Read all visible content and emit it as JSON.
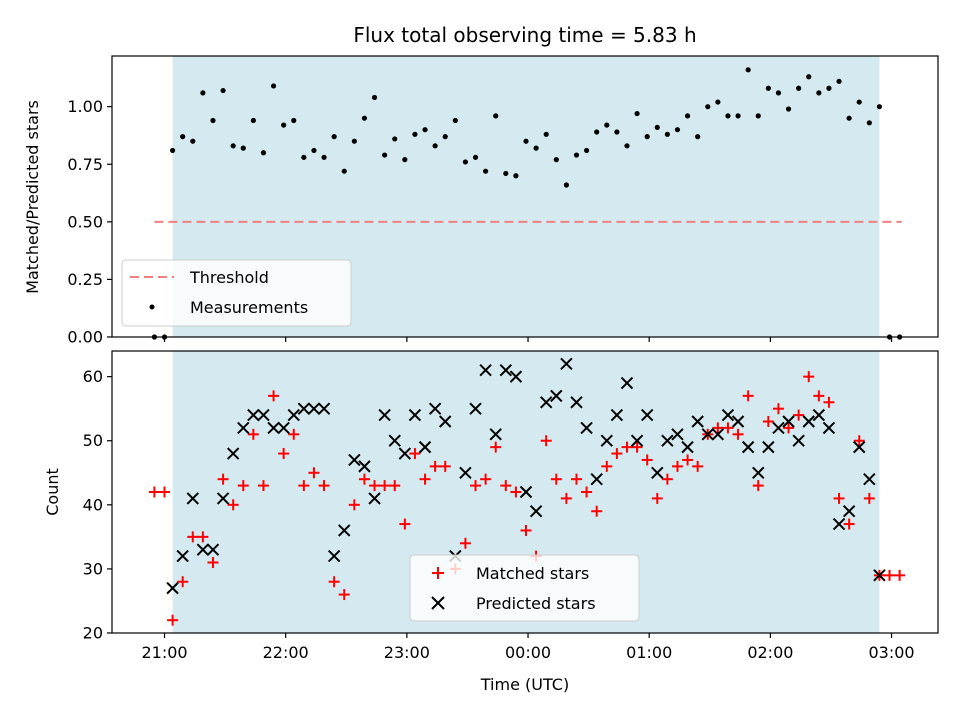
{
  "chart_data": [
    {
      "type": "scatter",
      "title": "Flux total observing time = 5.83 h",
      "ylabel": "Matched/Predicted stars",
      "ylim": [
        0.0,
        1.22
      ],
      "y_ticks": [
        "0.00",
        "0.25",
        "0.50",
        "0.75",
        "1.00"
      ],
      "x_range": [
        "20:34",
        "03:23"
      ],
      "shaded_span": [
        "21:04",
        "02:54"
      ],
      "colors": {
        "shade": "#d4eaf0",
        "threshold": "#f08080",
        "measurements": "#000000"
      },
      "threshold": {
        "name": "Threshold",
        "y": 0.5,
        "x_start": "20:55",
        "x_end": "03:05"
      },
      "series": [
        {
          "name": "Measurements",
          "x": [
            "20:55",
            "21:00",
            "21:04",
            "21:09",
            "21:14",
            "21:19",
            "21:24",
            "21:29",
            "21:34",
            "21:39",
            "21:44",
            "21:49",
            "21:54",
            "21:59",
            "22:04",
            "22:09",
            "22:14",
            "22:19",
            "22:24",
            "22:29",
            "22:34",
            "22:39",
            "22:44",
            "22:49",
            "22:54",
            "22:59",
            "23:04",
            "23:09",
            "23:14",
            "23:19",
            "23:24",
            "23:29",
            "23:34",
            "23:39",
            "23:44",
            "23:49",
            "23:54",
            "23:59",
            "00:04",
            "00:09",
            "00:14",
            "00:19",
            "00:24",
            "00:29",
            "00:34",
            "00:39",
            "00:44",
            "00:49",
            "00:54",
            "00:59",
            "01:04",
            "01:09",
            "01:14",
            "01:19",
            "01:24",
            "01:29",
            "01:34",
            "01:39",
            "01:44",
            "01:49",
            "01:54",
            "01:59",
            "02:04",
            "02:09",
            "02:14",
            "02:19",
            "02:24",
            "02:29",
            "02:34",
            "02:39",
            "02:44",
            "02:49",
            "02:54",
            "02:59",
            "03:04"
          ],
          "y": [
            0.0,
            0.0,
            0.81,
            0.87,
            0.85,
            1.06,
            0.94,
            1.07,
            0.83,
            0.82,
            0.94,
            0.8,
            1.09,
            0.92,
            0.94,
            0.78,
            0.81,
            0.78,
            0.87,
            0.72,
            0.85,
            0.95,
            1.04,
            0.79,
            0.86,
            0.77,
            0.88,
            0.9,
            0.83,
            0.87,
            0.94,
            0.76,
            0.78,
            0.72,
            0.96,
            0.71,
            0.7,
            0.85,
            0.82,
            0.88,
            0.77,
            0.66,
            0.79,
            0.81,
            0.89,
            0.92,
            0.89,
            0.83,
            0.97,
            0.87,
            0.91,
            0.88,
            0.9,
            0.96,
            0.87,
            1.0,
            1.02,
            0.96,
            0.96,
            1.16,
            0.96,
            1.08,
            1.06,
            0.99,
            1.08,
            1.13,
            1.06,
            1.08,
            1.11,
            0.95,
            1.02,
            0.93,
            1.0,
            0.0,
            0.0
          ]
        }
      ]
    },
    {
      "type": "scatter",
      "xlabel": "Time (UTC)",
      "ylabel": "Count",
      "ylim": [
        20,
        64
      ],
      "y_ticks": [
        "20",
        "30",
        "40",
        "50",
        "60"
      ],
      "x_ticks": [
        "21:00",
        "22:00",
        "23:00",
        "00:00",
        "01:00",
        "02:00",
        "03:00"
      ],
      "x_range": [
        "20:34",
        "03:23"
      ],
      "shaded_span": [
        "21:04",
        "02:54"
      ],
      "colors": {
        "shade": "#d4eaf0",
        "matched": "#ff0000",
        "predicted": "#000000"
      },
      "series": [
        {
          "name": "Matched stars",
          "x": [
            "20:55",
            "21:00",
            "21:04",
            "21:09",
            "21:14",
            "21:19",
            "21:24",
            "21:29",
            "21:34",
            "21:39",
            "21:44",
            "21:49",
            "21:54",
            "21:59",
            "22:04",
            "22:09",
            "22:14",
            "22:19",
            "22:24",
            "22:29",
            "22:34",
            "22:39",
            "22:44",
            "22:49",
            "22:54",
            "22:59",
            "23:04",
            "23:09",
            "23:14",
            "23:19",
            "23:24",
            "23:29",
            "23:34",
            "23:39",
            "23:44",
            "23:49",
            "23:54",
            "23:59",
            "00:04",
            "00:09",
            "00:14",
            "00:19",
            "00:24",
            "00:29",
            "00:34",
            "00:39",
            "00:44",
            "00:49",
            "00:54",
            "00:59",
            "01:04",
            "01:09",
            "01:14",
            "01:19",
            "01:24",
            "01:29",
            "01:34",
            "01:39",
            "01:44",
            "01:49",
            "01:54",
            "01:59",
            "02:04",
            "02:09",
            "02:14",
            "02:19",
            "02:24",
            "02:29",
            "02:34",
            "02:39",
            "02:44",
            "02:49",
            "02:54",
            "02:59",
            "03:04"
          ],
          "y": [
            42,
            42,
            22,
            28,
            35,
            35,
            31,
            44,
            40,
            43,
            51,
            43,
            57,
            48,
            51,
            43,
            45,
            43,
            28,
            26,
            40,
            44,
            43,
            43,
            43,
            37,
            48,
            44,
            46,
            46,
            30,
            34,
            43,
            44,
            49,
            43,
            42,
            36,
            32,
            50,
            44,
            41,
            44,
            42,
            39,
            46,
            48,
            49,
            49,
            47,
            41,
            44,
            46,
            47,
            46,
            51,
            52,
            52,
            51,
            57,
            43,
            53,
            55,
            52,
            54,
            60,
            57,
            56,
            41,
            37,
            50,
            41,
            29,
            29,
            29
          ]
        },
        {
          "name": "Predicted stars",
          "x": [
            "21:04",
            "21:09",
            "21:14",
            "21:19",
            "21:24",
            "21:29",
            "21:34",
            "21:39",
            "21:44",
            "21:49",
            "21:54",
            "21:59",
            "22:04",
            "22:09",
            "22:14",
            "22:19",
            "22:24",
            "22:29",
            "22:34",
            "22:39",
            "22:44",
            "22:49",
            "22:54",
            "22:59",
            "23:04",
            "23:09",
            "23:14",
            "23:19",
            "23:24",
            "23:29",
            "23:34",
            "23:39",
            "23:44",
            "23:49",
            "23:54",
            "23:59",
            "00:04",
            "00:09",
            "00:14",
            "00:19",
            "00:24",
            "00:29",
            "00:34",
            "00:39",
            "00:44",
            "00:49",
            "00:54",
            "00:59",
            "01:04",
            "01:09",
            "01:14",
            "01:19",
            "01:24",
            "01:29",
            "01:34",
            "01:39",
            "01:44",
            "01:49",
            "01:54",
            "01:59",
            "02:04",
            "02:09",
            "02:14",
            "02:19",
            "02:24",
            "02:29",
            "02:34",
            "02:39",
            "02:44",
            "02:49",
            "02:54"
          ],
          "y": [
            27,
            32,
            41,
            33,
            33,
            41,
            48,
            52,
            54,
            54,
            52,
            52,
            54,
            55,
            55,
            55,
            32,
            36,
            47,
            46,
            41,
            54,
            50,
            48,
            54,
            49,
            55,
            53,
            32,
            45,
            55,
            61,
            51,
            61,
            60,
            42,
            39,
            56,
            57,
            62,
            56,
            52,
            44,
            50,
            54,
            59,
            50,
            54,
            45,
            50,
            51,
            49,
            53,
            51,
            51,
            54,
            53,
            49,
            45,
            49,
            52,
            53,
            50,
            53,
            54,
            52,
            37,
            39,
            49,
            44,
            29
          ]
        }
      ]
    }
  ]
}
